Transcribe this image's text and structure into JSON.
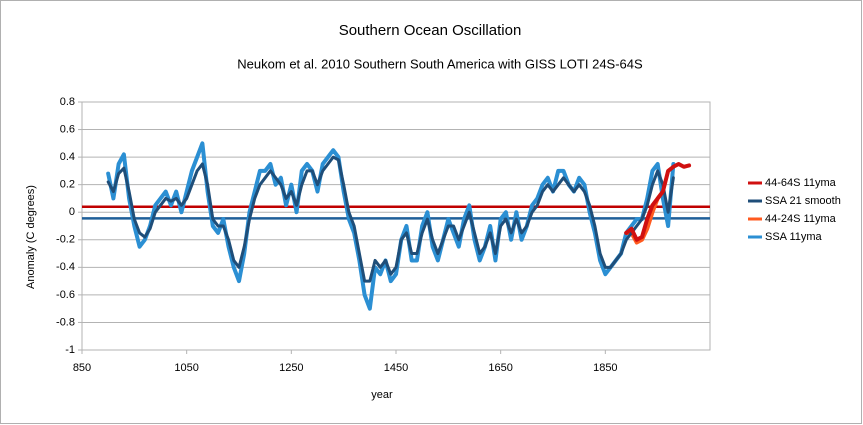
{
  "chart_data": {
    "type": "line",
    "title": "Southern Ocean Oscillation",
    "subtitle": "Neukom et al. 2010 Southern South America with GISS LOTI 24S-64S",
    "x_label": "year",
    "y_label": "Anomaly (C degrees)",
    "xlim": [
      850,
      2050
    ],
    "xticks": [
      850,
      1050,
      1250,
      1450,
      1650,
      1850
    ],
    "ylim": [
      -1,
      0.8
    ],
    "yticks": [
      0.8,
      0.6,
      0.4,
      0.2,
      0,
      -0.2,
      -0.4,
      -0.6,
      -0.8,
      -1
    ],
    "grid": true,
    "legend": "right",
    "reference_lines": [
      {
        "value": 0.04,
        "color": "#c00000"
      },
      {
        "value": -0.045,
        "color": "#1f5f99"
      }
    ],
    "series": [
      {
        "name": "44-64S 11yma",
        "color": "#d01010",
        "width": 4,
        "x": [
          1890,
          1900,
          1910,
          1920,
          1930,
          1940,
          1950,
          1960,
          1970,
          1980,
          1990,
          2000,
          2010
        ],
        "values": [
          -0.15,
          -0.12,
          -0.2,
          -0.18,
          -0.05,
          0.05,
          0.1,
          0.15,
          0.3,
          0.33,
          0.35,
          0.33,
          0.34
        ]
      },
      {
        "name": "SSA 21 smooth",
        "color": "#1f4e79",
        "width": 3,
        "x": [
          900,
          910,
          920,
          930,
          940,
          950,
          960,
          970,
          980,
          990,
          1000,
          1010,
          1020,
          1030,
          1040,
          1050,
          1060,
          1070,
          1080,
          1090,
          1100,
          1110,
          1120,
          1130,
          1140,
          1150,
          1160,
          1170,
          1180,
          1190,
          1200,
          1210,
          1220,
          1230,
          1240,
          1250,
          1260,
          1270,
          1280,
          1290,
          1300,
          1310,
          1320,
          1330,
          1340,
          1350,
          1360,
          1370,
          1380,
          1390,
          1400,
          1410,
          1420,
          1430,
          1440,
          1450,
          1460,
          1470,
          1480,
          1490,
          1500,
          1510,
          1520,
          1530,
          1540,
          1550,
          1560,
          1570,
          1580,
          1590,
          1600,
          1610,
          1620,
          1630,
          1640,
          1650,
          1660,
          1670,
          1680,
          1690,
          1700,
          1710,
          1720,
          1730,
          1740,
          1750,
          1760,
          1770,
          1780,
          1790,
          1800,
          1810,
          1820,
          1830,
          1840,
          1850,
          1860,
          1870,
          1880,
          1890,
          1900,
          1910,
          1920,
          1930,
          1940,
          1950,
          1960,
          1970,
          1980
        ],
        "values": [
          0.22,
          0.15,
          0.28,
          0.32,
          0.15,
          -0.05,
          -0.15,
          -0.18,
          -0.12,
          0,
          0.05,
          0.1,
          0.08,
          0.1,
          0.05,
          0.1,
          0.2,
          0.3,
          0.35,
          0.2,
          -0.05,
          -0.1,
          -0.1,
          -0.2,
          -0.35,
          -0.4,
          -0.25,
          -0.05,
          0.1,
          0.2,
          0.25,
          0.3,
          0.25,
          0.2,
          0.1,
          0.15,
          0.05,
          0.2,
          0.3,
          0.3,
          0.2,
          0.3,
          0.35,
          0.4,
          0.38,
          0.2,
          0,
          -0.1,
          -0.3,
          -0.5,
          -0.5,
          -0.35,
          -0.4,
          -0.35,
          -0.45,
          -0.4,
          -0.2,
          -0.15,
          -0.3,
          -0.3,
          -0.15,
          -0.05,
          -0.2,
          -0.3,
          -0.2,
          -0.1,
          -0.1,
          -0.2,
          -0.1,
          0,
          -0.15,
          -0.3,
          -0.25,
          -0.15,
          -0.3,
          -0.1,
          -0.05,
          -0.15,
          -0.05,
          -0.15,
          -0.1,
          0,
          0.05,
          0.15,
          0.2,
          0.15,
          0.2,
          0.25,
          0.2,
          0.15,
          0.2,
          0.15,
          0.05,
          -0.1,
          -0.3,
          -0.4,
          -0.4,
          -0.35,
          -0.3,
          -0.2,
          -0.15,
          -0.1,
          -0.05,
          0.05,
          0.2,
          0.3,
          0.2,
          0,
          0.25
        ]
      },
      {
        "name": "44-24S 11yma",
        "color": "#ff5a1f",
        "width": 4,
        "x": [
          1890,
          1900,
          1910,
          1920,
          1930,
          1940,
          1950,
          1960
        ],
        "values": [
          -0.15,
          -0.15,
          -0.22,
          -0.2,
          -0.12,
          0,
          0.1,
          0.15
        ]
      },
      {
        "name": "SSA 11yma",
        "color": "#2b8fd3",
        "width": 4,
        "x": [
          900,
          910,
          920,
          930,
          940,
          950,
          960,
          970,
          980,
          990,
          1000,
          1010,
          1020,
          1030,
          1040,
          1050,
          1060,
          1070,
          1080,
          1090,
          1100,
          1110,
          1120,
          1130,
          1140,
          1150,
          1160,
          1170,
          1180,
          1190,
          1200,
          1210,
          1220,
          1230,
          1240,
          1250,
          1260,
          1270,
          1280,
          1290,
          1300,
          1310,
          1320,
          1330,
          1340,
          1350,
          1360,
          1370,
          1380,
          1390,
          1400,
          1410,
          1420,
          1430,
          1440,
          1450,
          1460,
          1470,
          1480,
          1490,
          1500,
          1510,
          1520,
          1530,
          1540,
          1550,
          1560,
          1570,
          1580,
          1590,
          1600,
          1610,
          1620,
          1630,
          1640,
          1650,
          1660,
          1670,
          1680,
          1690,
          1700,
          1710,
          1720,
          1730,
          1740,
          1750,
          1760,
          1770,
          1780,
          1790,
          1800,
          1810,
          1820,
          1830,
          1840,
          1850,
          1860,
          1870,
          1880,
          1890,
          1900,
          1910,
          1920,
          1930,
          1940,
          1950,
          1960,
          1970,
          1980
        ],
        "values": [
          0.28,
          0.1,
          0.35,
          0.42,
          0.1,
          -0.1,
          -0.25,
          -0.2,
          -0.1,
          0.05,
          0.1,
          0.15,
          0.05,
          0.15,
          0,
          0.15,
          0.3,
          0.4,
          0.5,
          0.15,
          -0.1,
          -0.15,
          -0.05,
          -0.25,
          -0.4,
          -0.5,
          -0.3,
          0,
          0.15,
          0.3,
          0.3,
          0.35,
          0.2,
          0.25,
          0.05,
          0.2,
          0,
          0.3,
          0.35,
          0.3,
          0.15,
          0.35,
          0.4,
          0.45,
          0.4,
          0.15,
          -0.05,
          -0.15,
          -0.35,
          -0.6,
          -0.7,
          -0.4,
          -0.45,
          -0.35,
          -0.5,
          -0.45,
          -0.2,
          -0.1,
          -0.35,
          -0.35,
          -0.1,
          0,
          -0.25,
          -0.35,
          -0.2,
          -0.05,
          -0.15,
          -0.25,
          -0.05,
          0.05,
          -0.2,
          -0.35,
          -0.25,
          -0.1,
          -0.35,
          -0.05,
          0,
          -0.2,
          0,
          -0.2,
          -0.1,
          0.05,
          0.1,
          0.2,
          0.25,
          0.15,
          0.3,
          0.3,
          0.2,
          0.15,
          0.25,
          0.2,
          0,
          -0.15,
          -0.35,
          -0.45,
          -0.4,
          -0.35,
          -0.3,
          -0.15,
          -0.1,
          -0.05,
          -0.05,
          0.1,
          0.3,
          0.35,
          0.1,
          -0.1,
          0.35
        ]
      }
    ]
  }
}
